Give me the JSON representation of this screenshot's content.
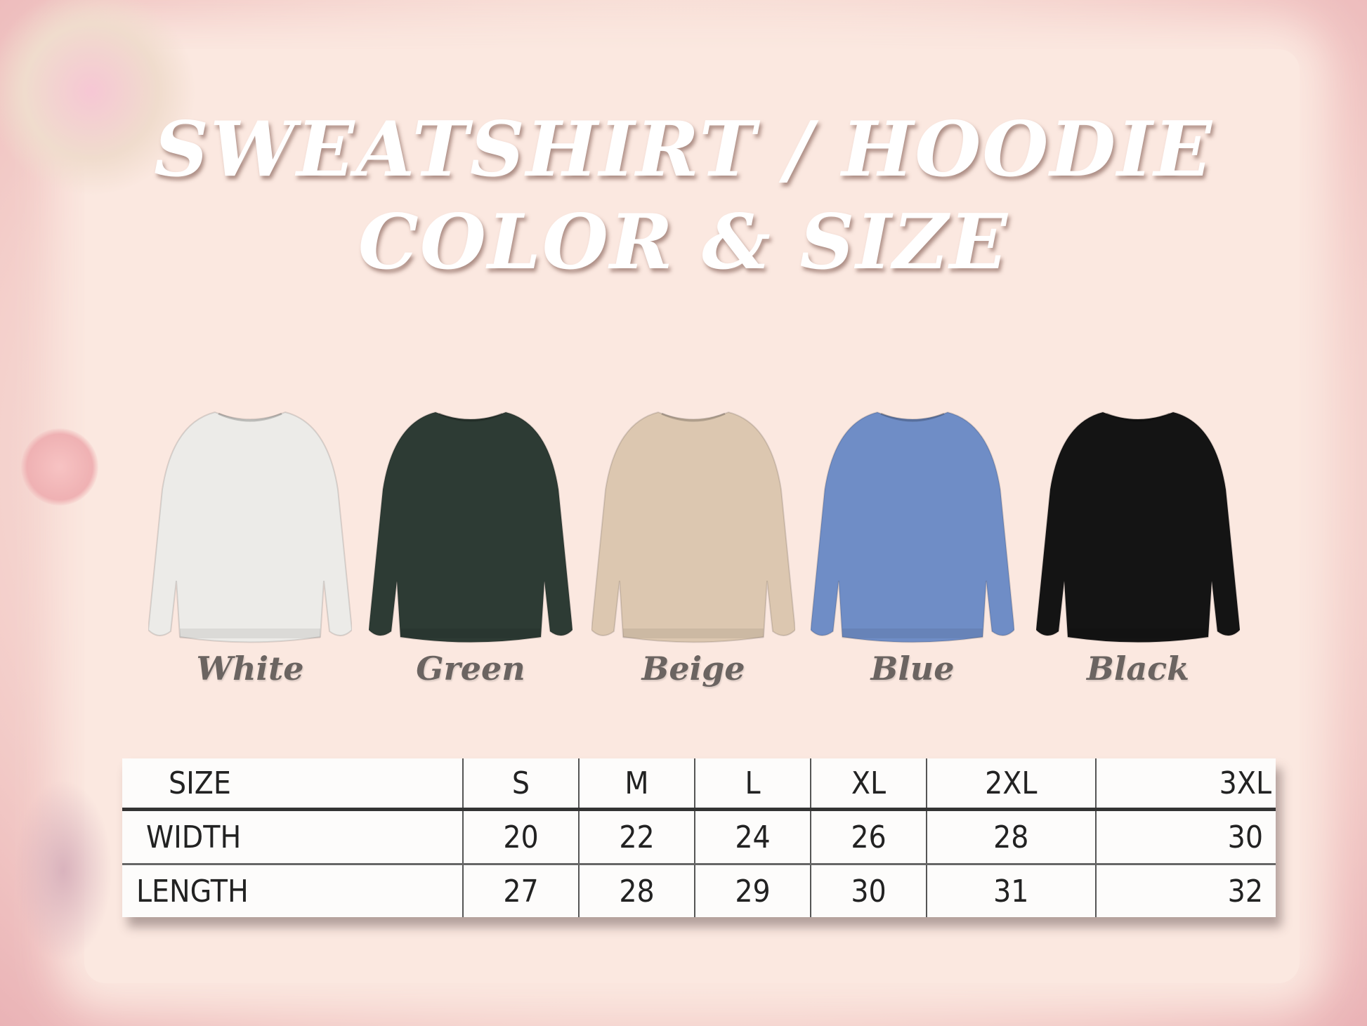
{
  "title": {
    "line1": "SWEATSHIRT / HOODIE",
    "line2": "COLOR & SIZE"
  },
  "colors": [
    {
      "name": "White",
      "hex": "#ecebe8"
    },
    {
      "name": "Green",
      "hex": "#2d3b34"
    },
    {
      "name": "Beige",
      "hex": "#dcc7b0"
    },
    {
      "name": "Blue",
      "hex": "#6f8dc6"
    },
    {
      "name": "Black",
      "hex": "#141414"
    }
  ],
  "size_table": {
    "header": [
      "SIZE",
      "S",
      "M",
      "L",
      "XL",
      "2XL",
      "3XL"
    ],
    "rows": [
      [
        "WIDTH",
        "20",
        "22",
        "24",
        "26",
        "28",
        "30"
      ],
      [
        "LENGTH",
        "27",
        "28",
        "29",
        "30",
        "31",
        "32"
      ]
    ]
  }
}
